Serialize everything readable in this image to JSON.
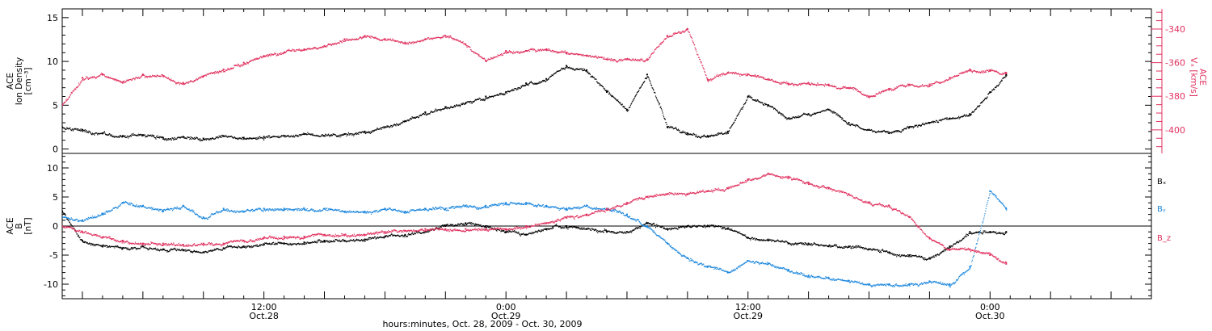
{
  "chart_data": {
    "x_axis_label": "hours:minutes, Oct. 28, 2009 - Oct. 30, 2009",
    "x_ticks": [
      {
        "t": 12,
        "time": "12:00",
        "date": "Oct.28"
      },
      {
        "t": 24,
        "time": "0:00",
        "date": "Oct.29"
      },
      {
        "t": 36,
        "time": "12:00",
        "date": "Oct.29"
      },
      {
        "t": 48,
        "time": "0:00",
        "date": "Oct.30"
      }
    ],
    "x_range_hours": [
      2.0,
      56.0
    ],
    "panels": [
      {
        "type": "scatter",
        "y_label_lines": [
          "ACE",
          "Ion Density",
          "[cm⁻³]"
        ],
        "ylim": [
          -0.5,
          16
        ],
        "y_ticks": [
          0,
          5,
          10,
          15
        ],
        "right_axis": {
          "label_lines": [
            "ACE",
            "Vₓ [km/s]"
          ],
          "ylim": [
            -414,
            -328
          ],
          "ticks": [
            -340,
            -360,
            -380,
            -400
          ],
          "color": "#e0305e"
        },
        "series": [
          {
            "axis": "left",
            "color": "#000000",
            "x": [
              2,
              3,
              4,
              5,
              6,
              7,
              8,
              9,
              10,
              11,
              12,
              13,
              14,
              15,
              16,
              17,
              18,
              19,
              20,
              21,
              22,
              23,
              24,
              25,
              26,
              27,
              28,
              29,
              30,
              31,
              32,
              33,
              34,
              35,
              36,
              37,
              38,
              39,
              40,
              41,
              42,
              43,
              44,
              45,
              46,
              47,
              48,
              48.8
            ],
            "y": [
              2.5,
              2.2,
              1.8,
              1.5,
              1.6,
              1.3,
              1.4,
              1.2,
              1.5,
              1.3,
              1.4,
              1.5,
              1.7,
              1.5,
              1.7,
              2.0,
              2.5,
              3.2,
              4.2,
              4.8,
              5.2,
              6.0,
              6.5,
              7.5,
              8.0,
              9.5,
              9.0,
              6.5,
              4.5,
              8.5,
              2.5,
              1.8,
              1.5,
              2.0,
              6.0,
              5.0,
              3.5,
              4.0,
              4.5,
              3.0,
              2.2,
              1.8,
              2.5,
              3.0,
              3.5,
              4.0,
              6.5,
              8.5
            ]
          },
          {
            "axis": "right",
            "color": "#e0305e",
            "x": [
              2,
              3,
              4,
              5,
              6,
              7,
              8,
              9,
              10,
              11,
              12,
              13,
              14,
              15,
              16,
              17,
              18,
              19,
              20,
              21,
              22,
              23,
              24,
              25,
              26,
              27,
              28,
              29,
              30,
              31,
              32,
              33,
              34,
              35,
              36,
              37,
              38,
              39,
              40,
              41,
              42,
              43,
              44,
              45,
              46,
              47,
              48,
              48.8
            ],
            "y": [
              -385,
              -369,
              -367,
              -372,
              -367,
              -368,
              -372,
              -368,
              -364,
              -360,
              -356,
              -354,
              -352,
              -350,
              -346,
              -344,
              -346,
              -348,
              -346,
              -344,
              -349,
              -359,
              -353,
              -353,
              -352,
              -354,
              -356,
              -358,
              -358,
              -358,
              -344,
              -340,
              -370,
              -366,
              -367,
              -370,
              -373,
              -372,
              -373,
              -375,
              -380,
              -376,
              -373,
              -373,
              -369,
              -364,
              -365,
              -366
            ]
          }
        ]
      },
      {
        "type": "scatter",
        "y_label_lines": [
          "ACE",
          "B",
          "[nT]"
        ],
        "ylim": [
          -12.5,
          12.5
        ],
        "y_ticks": [
          -10,
          -5,
          0,
          5,
          10
        ],
        "zero_line": true,
        "legend": [
          {
            "label": "Bₓ",
            "color": "#000000"
          },
          {
            "label": "Bᵧ",
            "color": "#1a86dd"
          },
          {
            "label": "B_z",
            "color": "#e0305e"
          }
        ],
        "series": [
          {
            "name": "Bₓ",
            "color": "#000000",
            "x": [
              2,
              3,
              4,
              5,
              6,
              7,
              8,
              9,
              10,
              11,
              12,
              13,
              14,
              15,
              16,
              17,
              18,
              19,
              20,
              21,
              22,
              23,
              24,
              25,
              26,
              27,
              28,
              29,
              30,
              31,
              32,
              33,
              34,
              35,
              36,
              37,
              38,
              39,
              40,
              41,
              42,
              43,
              44,
              45,
              46,
              47,
              48,
              48.8
            ],
            "y": [
              2.5,
              -2.5,
              -3.5,
              -3.8,
              -3.5,
              -4.0,
              -4.2,
              -4.5,
              -3.8,
              -3.5,
              -3.2,
              -3.0,
              -2.8,
              -2.5,
              -2.5,
              -2.3,
              -1.8,
              -1.5,
              -1.0,
              0,
              0.5,
              0,
              -1.0,
              -1.5,
              -0.5,
              0,
              -0.5,
              -1.0,
              -1.0,
              0.5,
              -0.5,
              0,
              0,
              -0.5,
              -2.0,
              -2.5,
              -3.0,
              -3.0,
              -3.5,
              -3.5,
              -4.0,
              -4.5,
              -5.0,
              -5.5,
              -3.5,
              -1.0,
              -1.0,
              -1.0
            ]
          },
          {
            "name": "Bᵧ",
            "color": "#1a86dd",
            "x": [
              2,
              3,
              4,
              5,
              6,
              7,
              8,
              9,
              10,
              11,
              12,
              13,
              14,
              15,
              16,
              17,
              18,
              19,
              20,
              21,
              22,
              23,
              24,
              25,
              26,
              27,
              28,
              29,
              30,
              31,
              32,
              33,
              34,
              35,
              36,
              37,
              38,
              39,
              40,
              41,
              42,
              43,
              44,
              45,
              46,
              47,
              48,
              48.8
            ],
            "y": [
              1.5,
              1.0,
              2.0,
              4.0,
              3.5,
              2.5,
              3.5,
              1.5,
              3.0,
              2.5,
              3.0,
              3.0,
              3.0,
              3.0,
              2.5,
              2.5,
              3.0,
              2.5,
              3.0,
              3.0,
              3.5,
              3.5,
              4.0,
              4.0,
              3.5,
              3.0,
              3.5,
              3.0,
              2.0,
              0,
              -3.0,
              -5.5,
              -7.0,
              -8.0,
              -6.0,
              -6.5,
              -7.5,
              -8.5,
              -9.0,
              -9.5,
              -10.0,
              -10.0,
              -10.0,
              -9.5,
              -10.0,
              -7.0,
              6.0,
              3.0
            ]
          },
          {
            "name": "B_z",
            "color": "#e0305e",
            "x": [
              2,
              3,
              4,
              5,
              6,
              7,
              8,
              9,
              10,
              11,
              12,
              13,
              14,
              15,
              16,
              17,
              18,
              19,
              20,
              21,
              22,
              23,
              24,
              25,
              26,
              27,
              28,
              29,
              30,
              31,
              32,
              33,
              34,
              35,
              36,
              37,
              38,
              39,
              40,
              41,
              42,
              43,
              44,
              45,
              46,
              47,
              48,
              48.8
            ],
            "y": [
              0,
              -1.0,
              -2.0,
              -2.5,
              -3.0,
              -3.0,
              -3.2,
              -3.0,
              -3.0,
              -2.5,
              -2.0,
              -1.8,
              -1.8,
              -1.5,
              -1.5,
              -1.5,
              -1.0,
              -0.8,
              -0.5,
              -0.5,
              -0.5,
              -0.5,
              -0.5,
              0,
              0.5,
              1.5,
              2.0,
              3.0,
              4.0,
              5.0,
              5.5,
              5.5,
              6.0,
              6.5,
              8.0,
              9.0,
              8.5,
              7.5,
              6.5,
              5.5,
              4.0,
              3.5,
              1.5,
              -2.0,
              -4.0,
              -4.0,
              -5.0,
              -6.5
            ]
          }
        ]
      }
    ]
  }
}
